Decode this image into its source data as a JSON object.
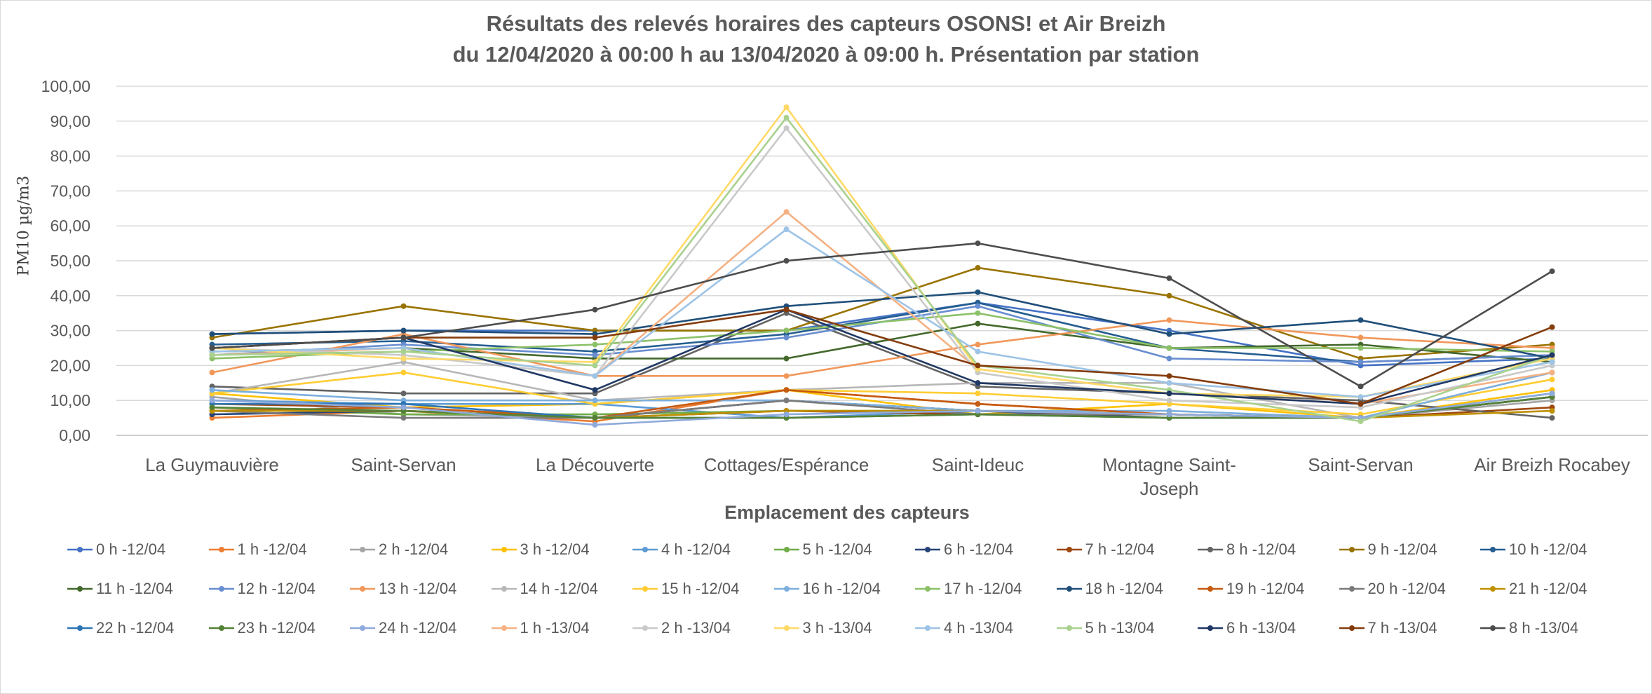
{
  "chart_data": {
    "type": "line",
    "title": "Résultats des relevés horaires des capteurs OSONS! et Air Breizh",
    "subtitle": "du 12/04/2020 à 00:00 h au 13/04/2020  à 09:00 h. Présentation par station",
    "xlabel": "Emplacement des capteurs",
    "ylabel": "PM10 µg/m3",
    "ylim": [
      0,
      100
    ],
    "yticks": [
      "0,00",
      "10,00",
      "20,00",
      "30,00",
      "40,00",
      "50,00",
      "60,00",
      "70,00",
      "80,00",
      "90,00",
      "100,00"
    ],
    "categories": [
      "La Guymauvière",
      "Saint-Servan",
      "La Découverte",
      "Cottages/Espérance",
      "Saint-Ideuc",
      "Montagne Saint-Joseph",
      "Saint-Servan",
      "Air Breizh Rocabey"
    ],
    "category_lines": [
      [
        "La Guymauvière"
      ],
      [
        "Saint-Servan"
      ],
      [
        "La Découverte"
      ],
      [
        "Cottages/Espérance"
      ],
      [
        "Saint-Ideuc"
      ],
      [
        "Montagne Saint-",
        "Joseph"
      ],
      [
        "Saint-Servan"
      ],
      [
        "Air Breizh Rocabey"
      ]
    ],
    "grid": true,
    "legend_position": "bottom",
    "series": [
      {
        "name": "0 h -12/04",
        "color": "#4472C4",
        "values": [
          29,
          30,
          30,
          30,
          38,
          30,
          20,
          22
        ]
      },
      {
        "name": "1 h -12/04",
        "color": "#ED7D31",
        "values": [
          5,
          7,
          4,
          13,
          9,
          6,
          5,
          11
        ]
      },
      {
        "name": "2 h -12/04",
        "color": "#A5A5A5",
        "values": [
          11,
          6,
          5,
          10,
          7,
          6,
          5,
          10
        ]
      },
      {
        "name": "3 h -12/04",
        "color": "#FFC000",
        "values": [
          12,
          8,
          9,
          13,
          6,
          9,
          5,
          13
        ]
      },
      {
        "name": "4 h -12/04",
        "color": "#5B9BD5",
        "values": [
          10,
          9,
          9,
          5,
          7,
          6,
          5,
          12
        ]
      },
      {
        "name": "5 h -12/04",
        "color": "#70AD47",
        "values": [
          8,
          6,
          6,
          7,
          7,
          6,
          5,
          12
        ]
      },
      {
        "name": "6 h -12/04",
        "color": "#264478",
        "values": [
          6,
          7,
          5,
          10,
          7,
          5,
          5,
          11
        ]
      },
      {
        "name": "7 h -12/04",
        "color": "#9E480E",
        "values": [
          9,
          8,
          5,
          7,
          6,
          6,
          5,
          8
        ]
      },
      {
        "name": "8 h -12/04",
        "color": "#636363",
        "values": [
          14,
          12,
          12,
          35,
          14,
          12,
          10,
          5
        ]
      },
      {
        "name": "9 h -12/04",
        "color": "#997300",
        "values": [
          28,
          37,
          30,
          30,
          48,
          40,
          22,
          26
        ]
      },
      {
        "name": "10 h -12/04",
        "color": "#255E91",
        "values": [
          26,
          27,
          24,
          29,
          38,
          25,
          21,
          23
        ]
      },
      {
        "name": "11 h -12/04",
        "color": "#43682B",
        "values": [
          24,
          25,
          22,
          22,
          32,
          25,
          26,
          21
        ]
      },
      {
        "name": "12 h -12/04",
        "color": "#698ED0",
        "values": [
          23,
          26,
          23,
          28,
          37,
          22,
          21,
          23
        ]
      },
      {
        "name": "13 h -12/04",
        "color": "#F1975A",
        "values": [
          18,
          29,
          17,
          17,
          26,
          33,
          28,
          25
        ]
      },
      {
        "name": "14 h -12/04",
        "color": "#B7B7B7",
        "values": [
          12,
          21,
          10,
          13,
          15,
          15,
          5,
          18
        ]
      },
      {
        "name": "15 h -12/04",
        "color": "#FFCD33",
        "values": [
          12,
          18,
          9,
          13,
          12,
          9,
          6,
          16
        ]
      },
      {
        "name": "16 h -12/04",
        "color": "#7CAFDD",
        "values": [
          13,
          10,
          10,
          10,
          7,
          7,
          5,
          18
        ]
      },
      {
        "name": "17 h -12/04",
        "color": "#8CC168",
        "values": [
          22,
          24,
          26,
          30,
          35,
          25,
          25,
          24
        ]
      },
      {
        "name": "18 h -12/04",
        "color": "#1F4E79",
        "values": [
          29,
          30,
          29,
          37,
          41,
          29,
          33,
          22
        ]
      },
      {
        "name": "19 h -12/04",
        "color": "#C55A11",
        "values": [
          7,
          8,
          5,
          13,
          9,
          6,
          5,
          11
        ]
      },
      {
        "name": "20 h -12/04",
        "color": "#7B7B7B",
        "values": [
          7,
          5,
          5,
          10,
          6,
          6,
          5,
          11
        ]
      },
      {
        "name": "21 h -12/04",
        "color": "#BF9000",
        "values": [
          7,
          7,
          5,
          7,
          7,
          6,
          5,
          7
        ]
      },
      {
        "name": "22 h -12/04",
        "color": "#2E75B6",
        "values": [
          9,
          9,
          5,
          5,
          6,
          5,
          5,
          11
        ]
      },
      {
        "name": "23 h -12/04",
        "color": "#548235",
        "values": [
          8,
          7,
          5,
          5,
          6,
          5,
          5,
          11
        ]
      },
      {
        "name": "24 h -12/04",
        "color": "#8FAADC",
        "values": [
          10,
          8,
          3,
          6,
          7,
          6,
          5,
          12
        ]
      },
      {
        "name": "1 h -13/04",
        "color": "#F4B183",
        "values": [
          23,
          25,
          17,
          64,
          19,
          12,
          9,
          18
        ]
      },
      {
        "name": "2 h -13/04",
        "color": "#C9C9C9",
        "values": [
          25,
          23,
          17,
          88,
          18,
          10,
          8,
          20
        ]
      },
      {
        "name": "3 h -13/04",
        "color": "#FFD966",
        "values": [
          25,
          22,
          21,
          94,
          19,
          12,
          11,
          22
        ]
      },
      {
        "name": "4 h -13/04",
        "color": "#9DC3E6",
        "values": [
          24,
          25,
          17,
          59,
          24,
          15,
          11,
          21
        ]
      },
      {
        "name": "5 h -13/04",
        "color": "#A9D18E",
        "values": [
          23,
          24,
          20,
          91,
          20,
          13,
          4,
          23
        ]
      },
      {
        "name": "6 h -13/04",
        "color": "#203864",
        "values": [
          25,
          28,
          13,
          36,
          15,
          12,
          9,
          23
        ]
      },
      {
        "name": "7 h -13/04",
        "color": "#843C0C",
        "values": [
          25,
          28,
          28,
          36,
          20,
          17,
          9,
          31
        ]
      },
      {
        "name": "8 h -13/04",
        "color": "#4D4D4D",
        "values": [
          25,
          28,
          36,
          50,
          55,
          45,
          14,
          47
        ]
      }
    ]
  }
}
